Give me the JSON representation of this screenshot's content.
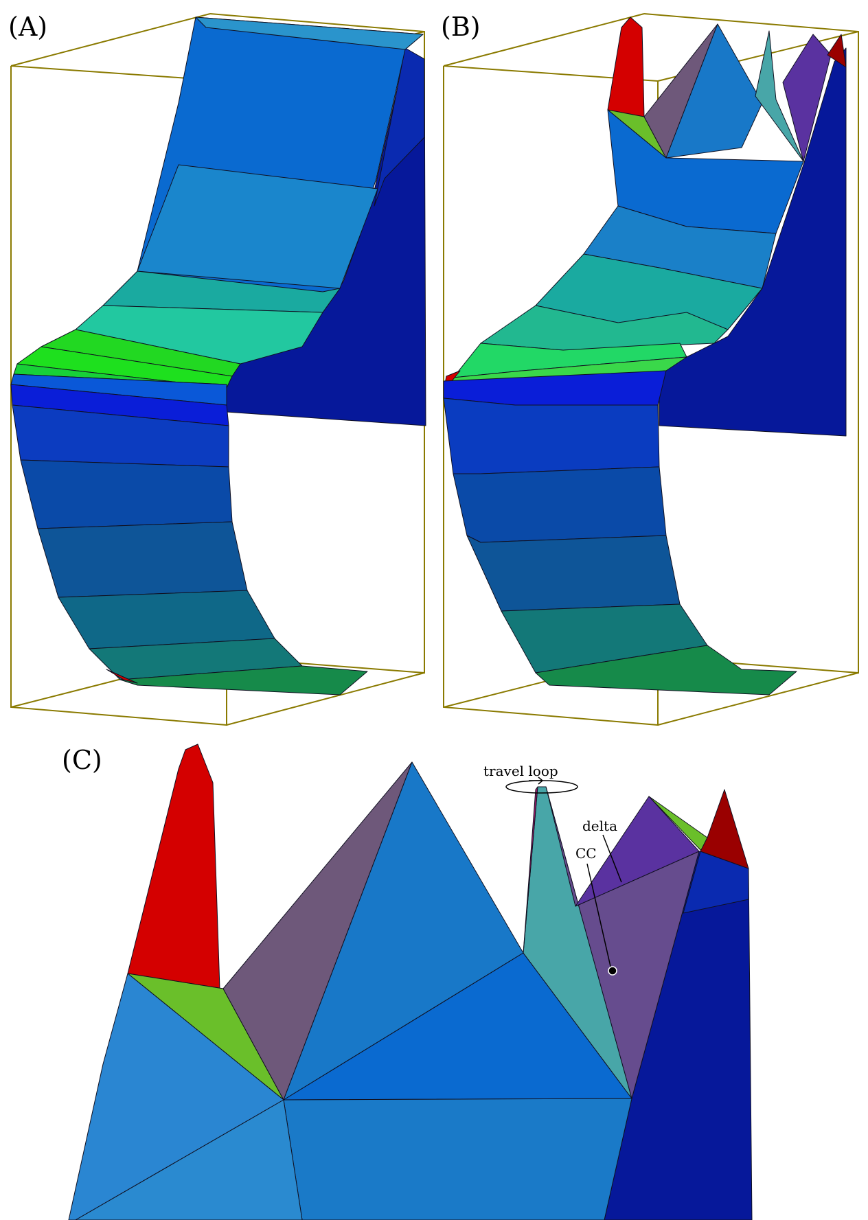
{
  "panels": {
    "a": {
      "label": "(A)"
    },
    "b": {
      "label": "(B)"
    },
    "c": {
      "label": "(C)"
    }
  },
  "annotations": {
    "travel_loop": "travel loop",
    "delta": "delta",
    "cc": "CC"
  },
  "colors": {
    "red": "#d40000",
    "dark_red": "#9a0000",
    "lime": "#6abf2a",
    "mauve": "#6e587a",
    "blue_light": "#2a86d2",
    "blue": "#0a6ad0",
    "blue_mid": "#1878c8",
    "teal": "#48a6a8",
    "purple": "#5a32a0",
    "violet": "#664c8e",
    "navy": "#06189a",
    "navy_dark": "#0a1e9a",
    "green_bright": "#22d822",
    "green_dark": "#168a4a",
    "teal_green": "#1cae9a",
    "box_outline": "#8a7a00"
  }
}
